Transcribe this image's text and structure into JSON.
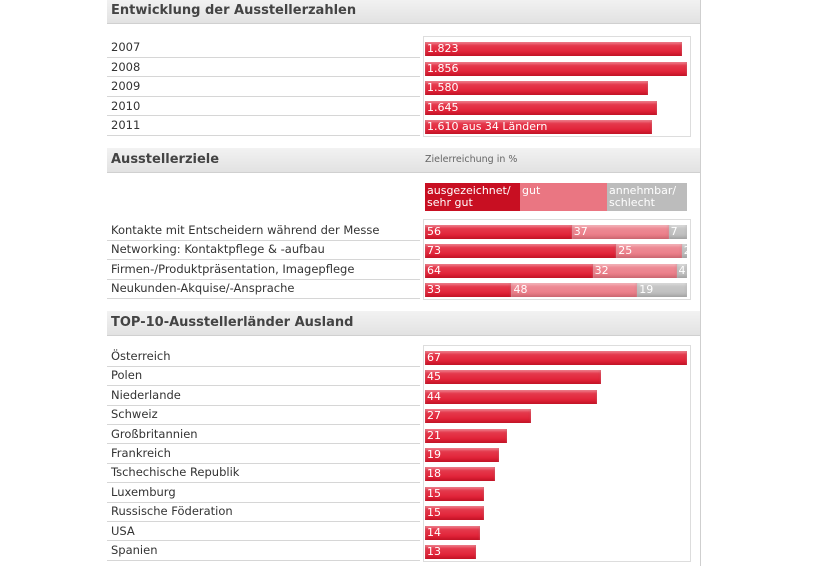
{
  "chart_data": [
    {
      "type": "bar",
      "title": "Entwicklung der Ausstellerzahlen",
      "categories": [
        "2007",
        "2008",
        "2009",
        "2010",
        "2011"
      ],
      "values": [
        1823,
        1856,
        1580,
        1645,
        1610
      ],
      "value_labels": [
        "1.823",
        "1.856",
        "1.580",
        "1.645",
        "1.610 aus 34 Ländern"
      ],
      "color": "#e0162c"
    },
    {
      "type": "stacked_bar",
      "title": "Ausstellerziele",
      "subtitle": "Zielerreichung in %",
      "categories": [
        "Kontakte mit Entscheidern während der Messe",
        "Networking: Kontaktpflege & -aufbau",
        "Firmen-/Produktpräsentation, Imagepflege",
        "Neukunden-Akquise/-Ansprache"
      ],
      "series": [
        {
          "name": "ausgezeichnet/ sehr gut",
          "color": "#e0162c",
          "values": [
            56,
            73,
            64,
            33
          ]
        },
        {
          "name": "gut",
          "color": "#ea7682",
          "values": [
            37,
            25,
            32,
            48
          ]
        },
        {
          "name": "annehmbar/ schlecht",
          "color": "#bcbcbc",
          "values": [
            7,
            2,
            4,
            19
          ]
        }
      ]
    },
    {
      "type": "bar",
      "title": "TOP-10-Ausstellerländer Ausland",
      "categories": [
        "Österreich",
        "Polen",
        "Niederlande",
        "Schweiz",
        "Großbritannien",
        "Frankreich",
        "Tschechische Republik",
        "Luxemburg",
        "Russische Föderation",
        "USA",
        "Spanien"
      ],
      "values": [
        67,
        45,
        44,
        27,
        21,
        19,
        18,
        15,
        15,
        14,
        13
      ],
      "color": "#e0162c"
    }
  ]
}
